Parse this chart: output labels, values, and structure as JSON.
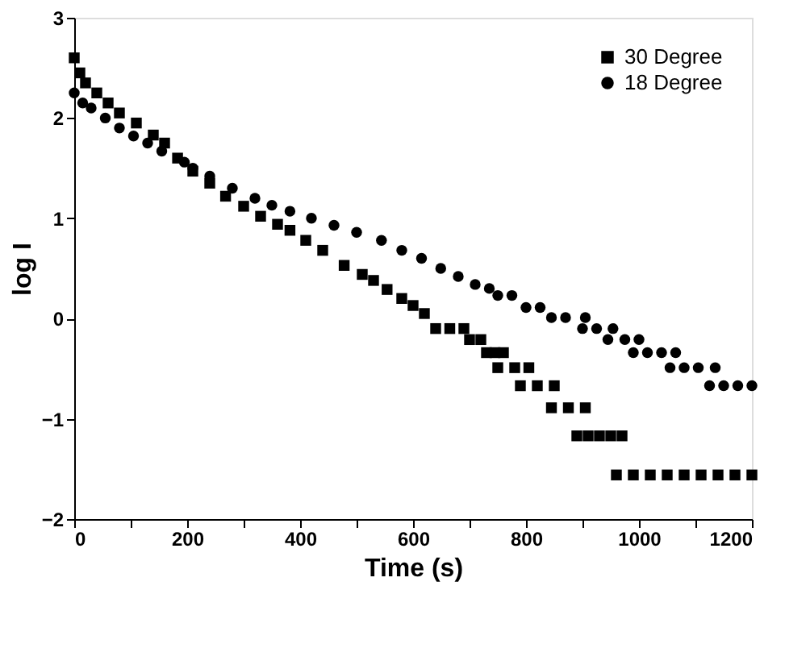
{
  "chart_data": {
    "type": "scatter",
    "xlabel": "Time (s)",
    "ylabel": "log I",
    "xlim": [
      0,
      1200
    ],
    "ylim": [
      -2,
      3
    ],
    "xticks": [
      0,
      {
        "value": 100,
        "label": null
      },
      200,
      {
        "value": 300,
        "label": null
      },
      400,
      {
        "value": 500,
        "label": null
      },
      600,
      {
        "value": 700,
        "label": null
      },
      800,
      {
        "value": 900,
        "label": null
      },
      1000,
      {
        "value": 1100,
        "label": null
      },
      1200
    ],
    "yticks": [
      -2,
      -1,
      0,
      1,
      2,
      3
    ],
    "grid": false,
    "legend": "top right",
    "series": [
      {
        "name": "30 Degree",
        "color": "#000000",
        "marker": "square",
        "x": [
          0,
          10,
          20,
          40,
          60,
          80,
          110,
          140,
          160,
          183,
          210,
          240,
          268,
          300,
          330,
          360,
          382,
          410,
          440,
          478,
          510,
          530,
          554,
          580,
          600,
          620,
          640,
          665,
          690,
          700,
          720,
          730,
          745,
          760,
          750,
          780,
          805,
          790,
          820,
          850,
          845,
          875,
          905,
          890,
          910,
          930,
          950,
          970,
          960,
          990,
          1020,
          1050,
          1080,
          1110,
          1140,
          1170,
          1200
        ],
        "values": [
          2.6,
          2.45,
          2.35,
          2.25,
          2.15,
          2.05,
          1.95,
          1.83,
          1.75,
          1.6,
          1.47,
          1.35,
          1.22,
          1.12,
          1.02,
          0.94,
          0.88,
          0.78,
          0.68,
          0.53,
          0.44,
          0.38,
          0.29,
          0.2,
          0.13,
          0.05,
          -0.1,
          -0.1,
          -0.1,
          -0.21,
          -0.21,
          -0.34,
          -0.34,
          -0.34,
          -0.49,
          -0.49,
          -0.49,
          -0.67,
          -0.67,
          -0.67,
          -0.89,
          -0.89,
          -0.89,
          -1.17,
          -1.17,
          -1.17,
          -1.17,
          -1.17,
          -1.56,
          -1.56,
          -1.56,
          -1.56,
          -1.56,
          -1.56,
          -1.56,
          -1.56,
          -1.56
        ]
      },
      {
        "name": "18 Degree",
        "color": "#000000",
        "marker": "circle",
        "x": [
          0,
          15,
          30,
          55,
          80,
          105,
          130,
          155,
          195,
          210,
          240,
          280,
          320,
          350,
          382,
          420,
          460,
          500,
          544,
          580,
          615,
          649,
          680,
          710,
          735,
          750,
          775,
          800,
          825,
          845,
          870,
          905,
          900,
          925,
          954,
          945,
          975,
          1000,
          990,
          1015,
          1040,
          1065,
          1055,
          1080,
          1105,
          1135,
          1125,
          1150,
          1175,
          1200
        ],
        "values": [
          2.25,
          2.15,
          2.1,
          2.0,
          1.9,
          1.82,
          1.75,
          1.67,
          1.56,
          1.5,
          1.42,
          1.3,
          1.2,
          1.13,
          1.07,
          1.0,
          0.93,
          0.86,
          0.78,
          0.68,
          0.6,
          0.5,
          0.42,
          0.34,
          0.3,
          0.23,
          0.23,
          0.11,
          0.11,
          0.01,
          0.01,
          0.01,
          -0.1,
          -0.1,
          -0.1,
          -0.21,
          -0.21,
          -0.21,
          -0.34,
          -0.34,
          -0.34,
          -0.34,
          -0.49,
          -0.49,
          -0.49,
          -0.49,
          -0.67,
          -0.67,
          -0.67,
          -0.67
        ]
      }
    ]
  }
}
